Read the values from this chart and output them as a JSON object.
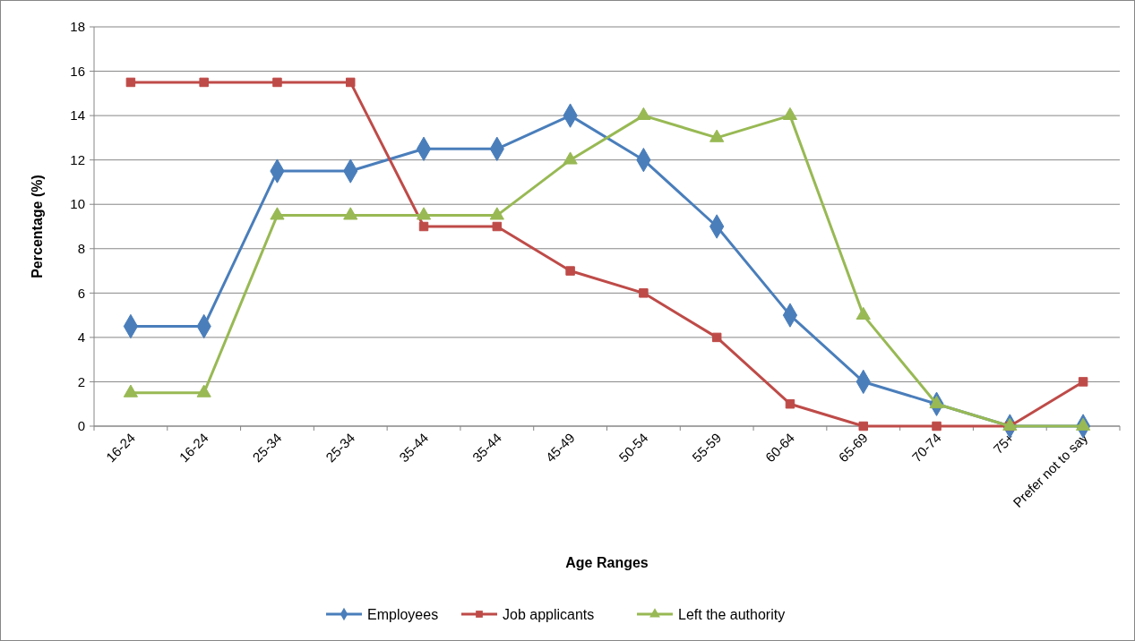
{
  "chart_data": {
    "type": "line",
    "xlabel": "Age Ranges",
    "ylabel": "Percentage (%)",
    "categories": [
      "16-24",
      "16-24",
      "25-34",
      "25-34",
      "35-44",
      "35-44",
      "45-49",
      "50-54",
      "55-59",
      "60-64",
      "65-69",
      "70-74",
      "75+",
      "Prefer not to say"
    ],
    "series": [
      {
        "name": "Employees",
        "color": "#4a7ebb",
        "marker": "diamond",
        "values": [
          4.5,
          4.5,
          11.5,
          11.5,
          12.5,
          12.5,
          14,
          12,
          9,
          5,
          2,
          1,
          0,
          0
        ]
      },
      {
        "name": "Job applicants",
        "color": "#be4b48",
        "marker": "square",
        "values": [
          15.5,
          15.5,
          15.5,
          15.5,
          9,
          9,
          7,
          6,
          4,
          1,
          0,
          0,
          0,
          2
        ]
      },
      {
        "name": "Left the authority",
        "color": "#98b954",
        "marker": "triangle",
        "values": [
          1.5,
          1.5,
          9.5,
          9.5,
          9.5,
          9.5,
          12,
          14,
          13,
          14,
          5,
          1,
          0,
          0
        ]
      }
    ],
    "ylim": [
      0,
      18
    ],
    "yticks": [
      0,
      2,
      4,
      6,
      8,
      10,
      12,
      14,
      16,
      18
    ],
    "grid": "y",
    "legend": "bottom",
    "line_style": "solid"
  }
}
